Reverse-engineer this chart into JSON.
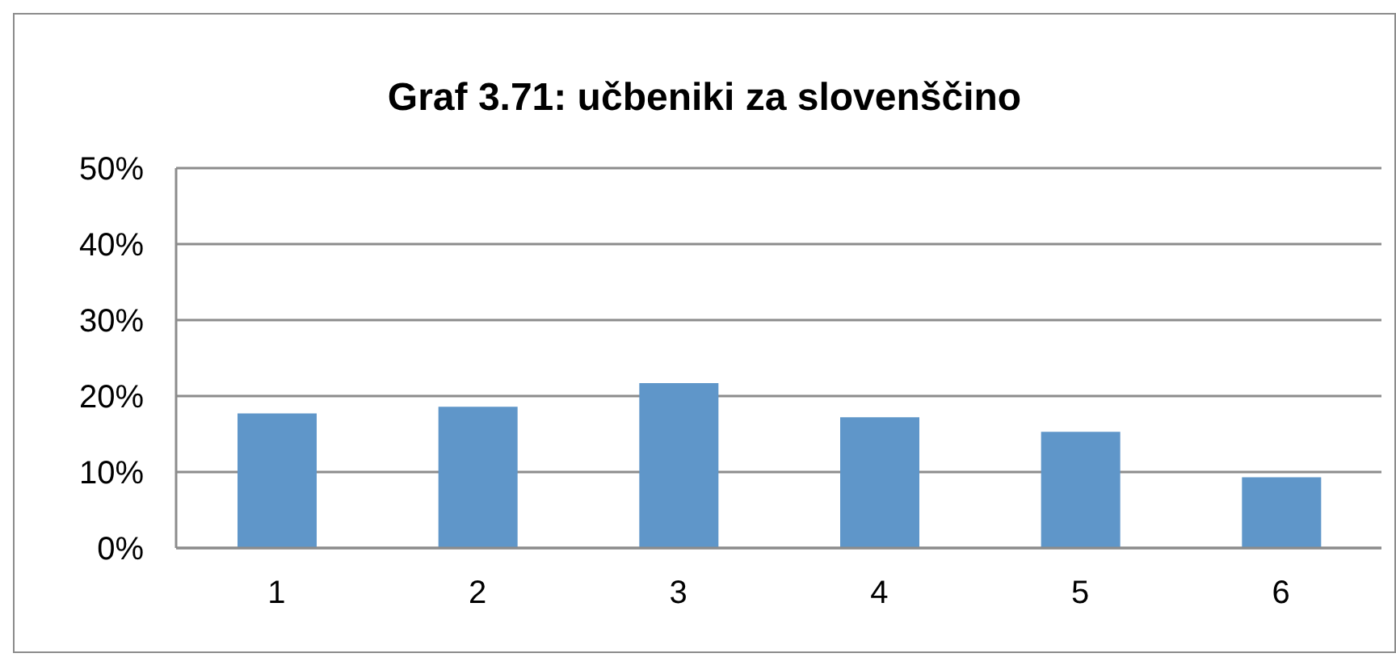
{
  "chart_data": {
    "type": "bar",
    "title": "Graf 3.71: učbeniki za slovenščino",
    "categories": [
      "1",
      "2",
      "3",
      "4",
      "5",
      "6"
    ],
    "values": [
      17.7,
      18.6,
      21.7,
      17.2,
      15.3,
      9.3
    ],
    "color": "#5f96c9",
    "ylim": [
      0,
      50
    ],
    "yticks": [
      {
        "value": 0,
        "label": "0%"
      },
      {
        "value": 10,
        "label": "10%"
      },
      {
        "value": 20,
        "label": "20%"
      },
      {
        "value": 30,
        "label": "30%"
      },
      {
        "value": 40,
        "label": "40%"
      },
      {
        "value": 50,
        "label": "50%"
      }
    ],
    "grid": "y"
  }
}
